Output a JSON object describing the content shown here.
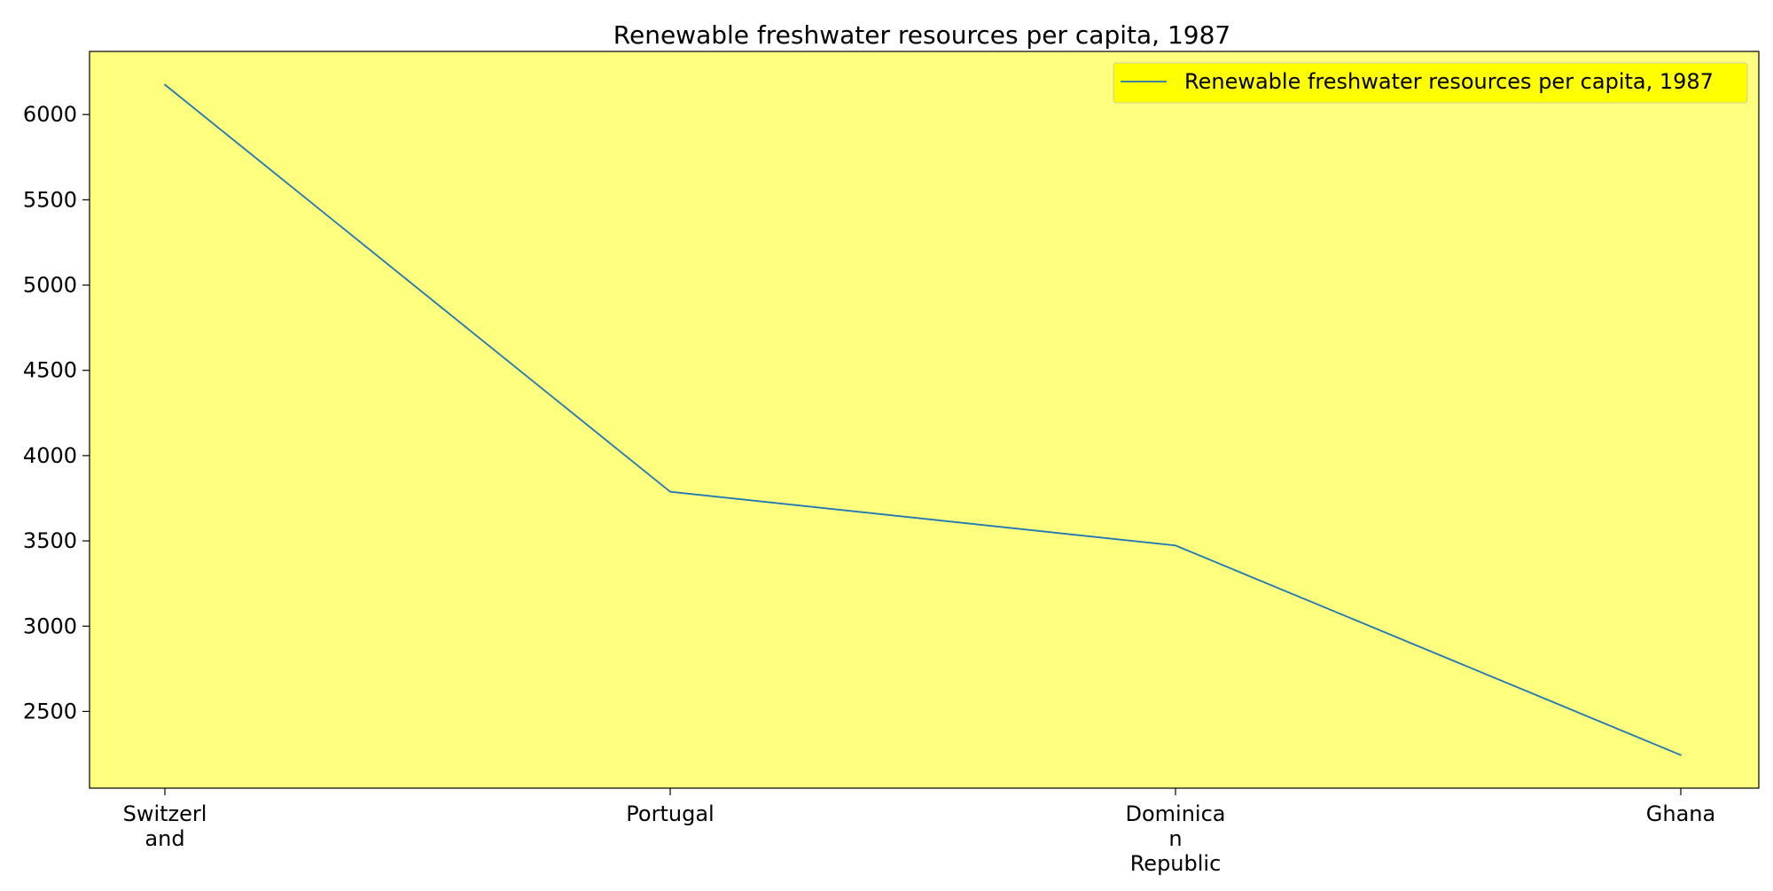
{
  "chart_data": {
    "type": "line",
    "title": "Renewable freshwater resources per capita, 1987",
    "xlabel": "",
    "ylabel": "",
    "categories": [
      [
        "Switzerl",
        "and"
      ],
      [
        "Portugal"
      ],
      [
        "Dominica",
        "n",
        "Republic"
      ],
      [
        "Ghana"
      ]
    ],
    "series": [
      {
        "name": "Renewable freshwater resources per capita, 1987",
        "values": [
          6175,
          3788,
          3473,
          2244
        ],
        "color": "#1f77b4"
      }
    ],
    "ylim": [
      2050,
      6370
    ],
    "yticks": [
      2500,
      3000,
      3500,
      4000,
      4500,
      5000,
      5500,
      6000
    ],
    "grid": false,
    "legend_position": "top-right",
    "plot_background": "#ffff7f",
    "legend_background": "#ffff00"
  }
}
